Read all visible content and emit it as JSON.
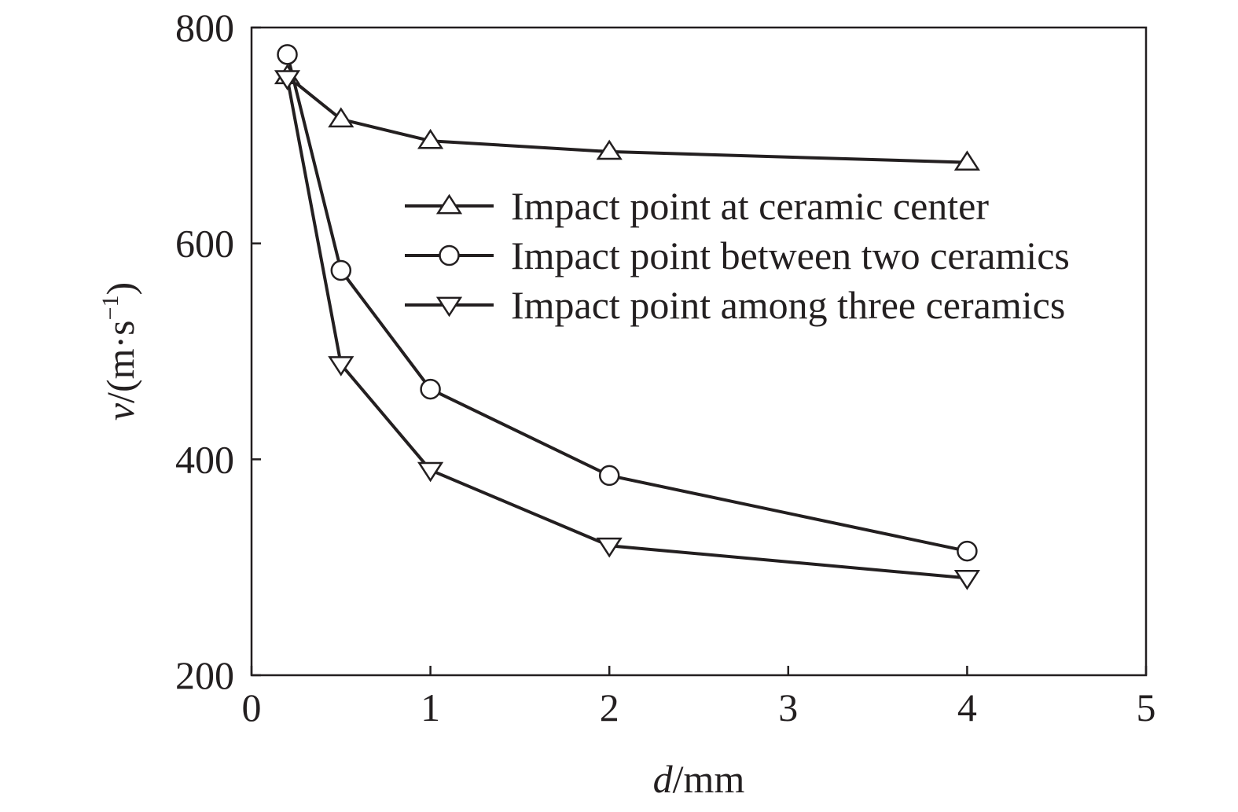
{
  "chart_data": {
    "type": "line",
    "title": "",
    "xlabel": {
      "var": "d",
      "unit": "/mm"
    },
    "ylabel": {
      "var": "v",
      "unit_open": "/(m·s",
      "unit_exp": "−1",
      "unit_close": ")"
    },
    "xlim": [
      0,
      5
    ],
    "ylim": [
      200,
      800
    ],
    "xticks": [
      0,
      1,
      2,
      3,
      4,
      5
    ],
    "yticks": [
      200,
      400,
      600,
      800
    ],
    "xtick_labels": [
      "0",
      "1",
      "2",
      "3",
      "4",
      "5"
    ],
    "ytick_labels": [
      "200",
      "400",
      "600",
      "800"
    ],
    "grid": false,
    "legend_position": "upper-right",
    "series": [
      {
        "name": "Impact point at ceramic center",
        "marker": "triangle-up",
        "x": [
          0.2,
          0.5,
          1,
          2,
          4
        ],
        "y": [
          755,
          715,
          695,
          685,
          675
        ]
      },
      {
        "name": "Impact point between two ceramics",
        "marker": "circle",
        "x": [
          0.2,
          0.5,
          1,
          2,
          4
        ],
        "y": [
          775,
          575,
          465,
          385,
          315
        ]
      },
      {
        "name": "Impact point among three ceramics",
        "marker": "triangle-down",
        "x": [
          0.2,
          0.5,
          1,
          2,
          4
        ],
        "y": [
          753,
          488,
          390,
          320,
          290
        ]
      }
    ],
    "colors": {
      "line": "#231f20",
      "marker_fill": "#ffffff"
    }
  }
}
